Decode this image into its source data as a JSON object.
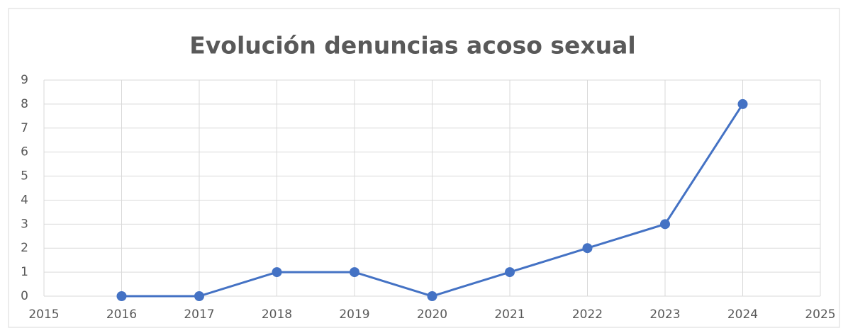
{
  "chart_data": {
    "type": "line",
    "title": "Evolución denuncias acoso sexual",
    "x": [
      2016,
      2017,
      2018,
      2019,
      2020,
      2021,
      2022,
      2023,
      2024
    ],
    "values": [
      0,
      0,
      1,
      1,
      0,
      1,
      2,
      3,
      8
    ],
    "color": "#4472c4",
    "xlim": [
      2015,
      2025
    ],
    "xticks": [
      2015,
      2016,
      2017,
      2018,
      2019,
      2020,
      2021,
      2022,
      2023,
      2024,
      2025
    ],
    "ylim": [
      0,
      9
    ],
    "yticks": [
      0,
      1,
      2,
      3,
      4,
      5,
      6,
      7,
      8,
      9
    ],
    "grid": true,
    "markers": true
  }
}
